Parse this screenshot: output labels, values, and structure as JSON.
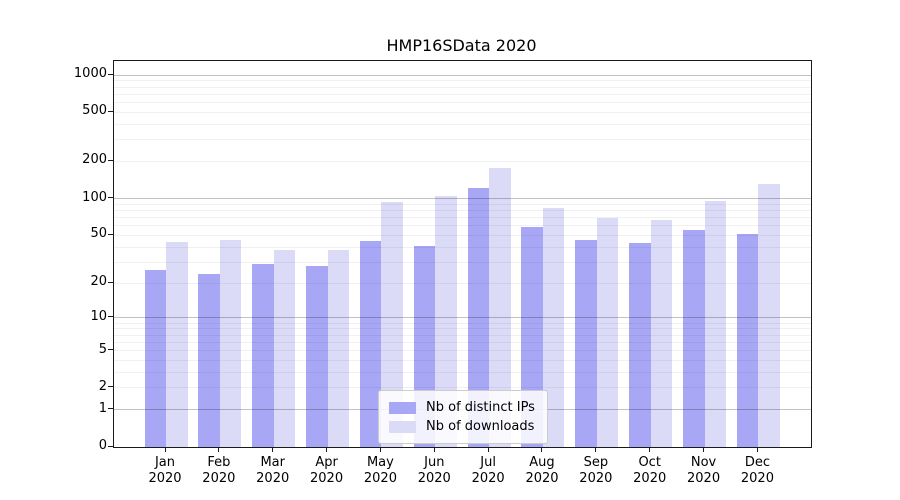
{
  "title": "HMP16SData 2020",
  "chart_data": {
    "type": "bar",
    "title": "HMP16SData 2020",
    "categories": [
      "Jan 2020",
      "Feb 2020",
      "Mar 2020",
      "Apr 2020",
      "May 2020",
      "Jun 2020",
      "Jul 2020",
      "Aug 2020",
      "Sep 2020",
      "Oct 2020",
      "Nov 2020",
      "Dec 2020"
    ],
    "series": [
      {
        "name": "Nb of distinct IPs",
        "color": "#a7a7f6",
        "values": [
          26,
          24,
          29,
          28,
          45,
          41,
          122,
          58,
          46,
          43,
          55,
          51
        ]
      },
      {
        "name": "Nb of downloads",
        "color": "#dbdbf8",
        "values": [
          44,
          46,
          38,
          38,
          94,
          104,
          178,
          83,
          70,
          67,
          95,
          131
        ]
      }
    ],
    "xlabel": "",
    "ylabel": "",
    "yscale": "log1p",
    "yticks": [
      0,
      1,
      2,
      5,
      10,
      20,
      50,
      100,
      200,
      500,
      1000
    ],
    "ylim": [
      0,
      1286
    ],
    "grid": "horizontal",
    "legend_position": "lower center"
  }
}
